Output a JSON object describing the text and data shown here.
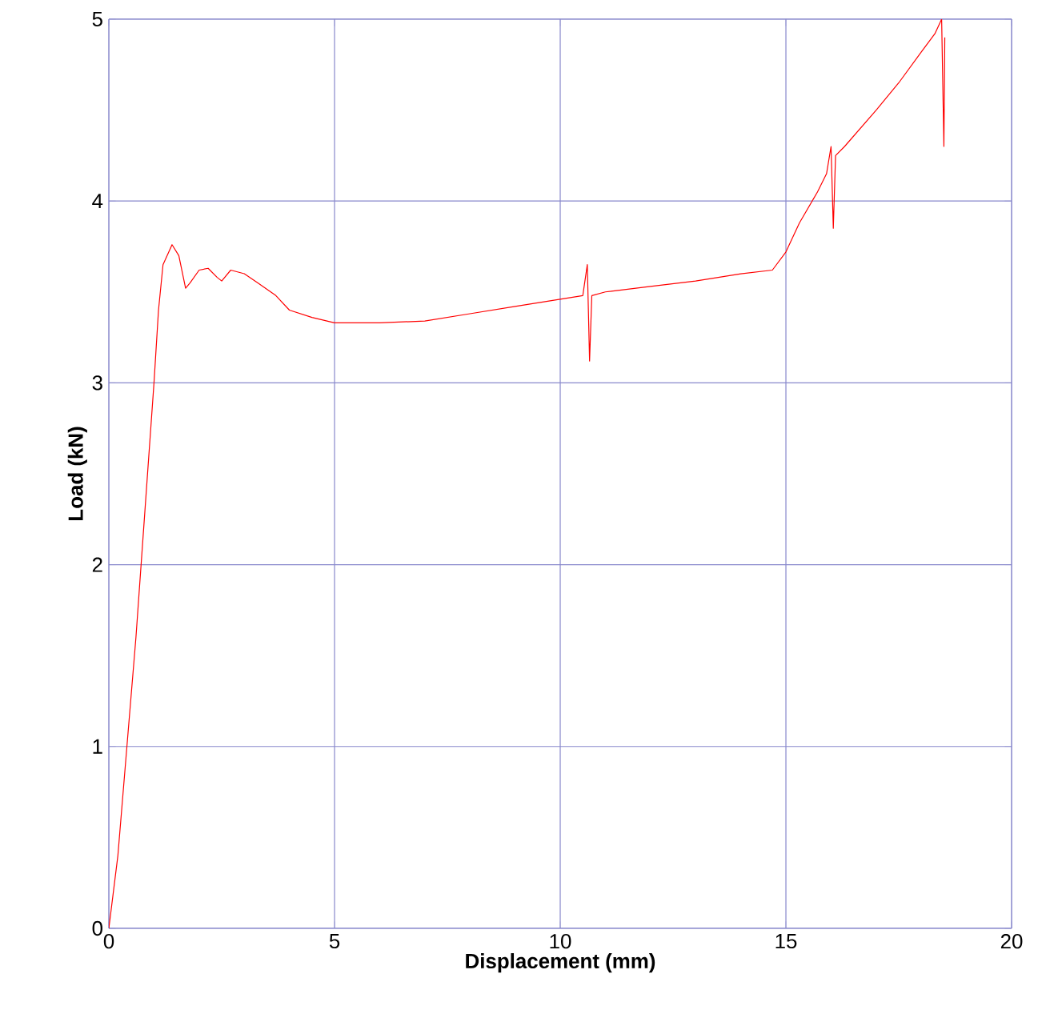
{
  "chart_data": {
    "type": "line",
    "xlabel": "Displacement (mm)",
    "ylabel": "Load (kN)",
    "xlim": [
      0,
      20
    ],
    "ylim": [
      0,
      5
    ],
    "xticks": [
      0,
      5,
      10,
      15,
      20
    ],
    "yticks": [
      0,
      1,
      2,
      3,
      4,
      5
    ],
    "grid": true,
    "series": [
      {
        "color": "#ff0000",
        "x": [
          0,
          0.2,
          0.4,
          0.6,
          0.8,
          1.0,
          1.1,
          1.2,
          1.4,
          1.55,
          1.7,
          1.8,
          2.0,
          2.2,
          2.4,
          2.5,
          2.7,
          3.0,
          3.3,
          3.7,
          4.0,
          4.5,
          5,
          6,
          7,
          8,
          9,
          10,
          10.5,
          10.6,
          10.65,
          10.7,
          11,
          12,
          13,
          14,
          14.7,
          15,
          15.3,
          15.7,
          15.9,
          16.0,
          16.05,
          16.1,
          16.3,
          17,
          17.5,
          18,
          18.3,
          18.45,
          18.5,
          18.52
        ],
        "values": [
          0,
          0.4,
          1.0,
          1.6,
          2.3,
          3.0,
          3.4,
          3.65,
          3.76,
          3.7,
          3.52,
          3.55,
          3.62,
          3.63,
          3.58,
          3.56,
          3.62,
          3.6,
          3.55,
          3.48,
          3.4,
          3.36,
          3.33,
          3.33,
          3.34,
          3.38,
          3.42,
          3.46,
          3.48,
          3.65,
          3.12,
          3.48,
          3.5,
          3.53,
          3.56,
          3.6,
          3.62,
          3.72,
          3.88,
          4.05,
          4.15,
          4.3,
          3.85,
          4.25,
          4.3,
          4.5,
          4.65,
          4.82,
          4.92,
          5.0,
          4.3,
          4.9
        ]
      }
    ]
  }
}
